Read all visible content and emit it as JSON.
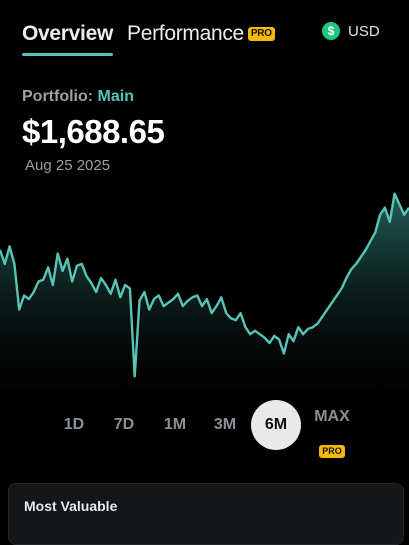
{
  "tabs": {
    "overview": "Overview",
    "performance": "Performance",
    "pro_badge": "PRO"
  },
  "currency": {
    "icon": "$",
    "label": "USD",
    "icon_color": "#1fc780"
  },
  "portfolio": {
    "prefix": "Portfolio:",
    "name": "Main",
    "balance": "$1,688.65",
    "date": "Aug 25 2025"
  },
  "colors": {
    "accent": "#58c4b7",
    "pro": "#f5b90a",
    "background": "#000000"
  },
  "ranges": [
    {
      "label": "1D",
      "active": false
    },
    {
      "label": "7D",
      "active": false
    },
    {
      "label": "1M",
      "active": false
    },
    {
      "label": "3M",
      "active": false
    },
    {
      "label": "6M",
      "active": true
    },
    {
      "label": "MAX",
      "active": false,
      "pro": "PRO"
    }
  ],
  "card": {
    "title": "Most Valuable"
  },
  "chart_data": {
    "type": "area",
    "values": [
      1600,
      1560,
      1610,
      1560,
      1430,
      1470,
      1460,
      1480,
      1510,
      1515,
      1550,
      1500,
      1590,
      1540,
      1575,
      1510,
      1555,
      1560,
      1525,
      1505,
      1480,
      1520,
      1500,
      1475,
      1515,
      1465,
      1500,
      1490,
      1240,
      1455,
      1480,
      1430,
      1460,
      1470,
      1440,
      1450,
      1460,
      1475,
      1440,
      1455,
      1465,
      1470,
      1440,
      1460,
      1420,
      1440,
      1465,
      1420,
      1405,
      1400,
      1420,
      1380,
      1360,
      1370,
      1360,
      1350,
      1335,
      1355,
      1345,
      1305,
      1360,
      1340,
      1380,
      1360,
      1375,
      1380,
      1390,
      1410,
      1430,
      1450,
      1470,
      1490,
      1520,
      1545,
      1560,
      1580,
      1600,
      1625,
      1650,
      1700,
      1720,
      1680,
      1760,
      1730,
      1700,
      1720
    ],
    "series_color": "#58c4b7"
  }
}
